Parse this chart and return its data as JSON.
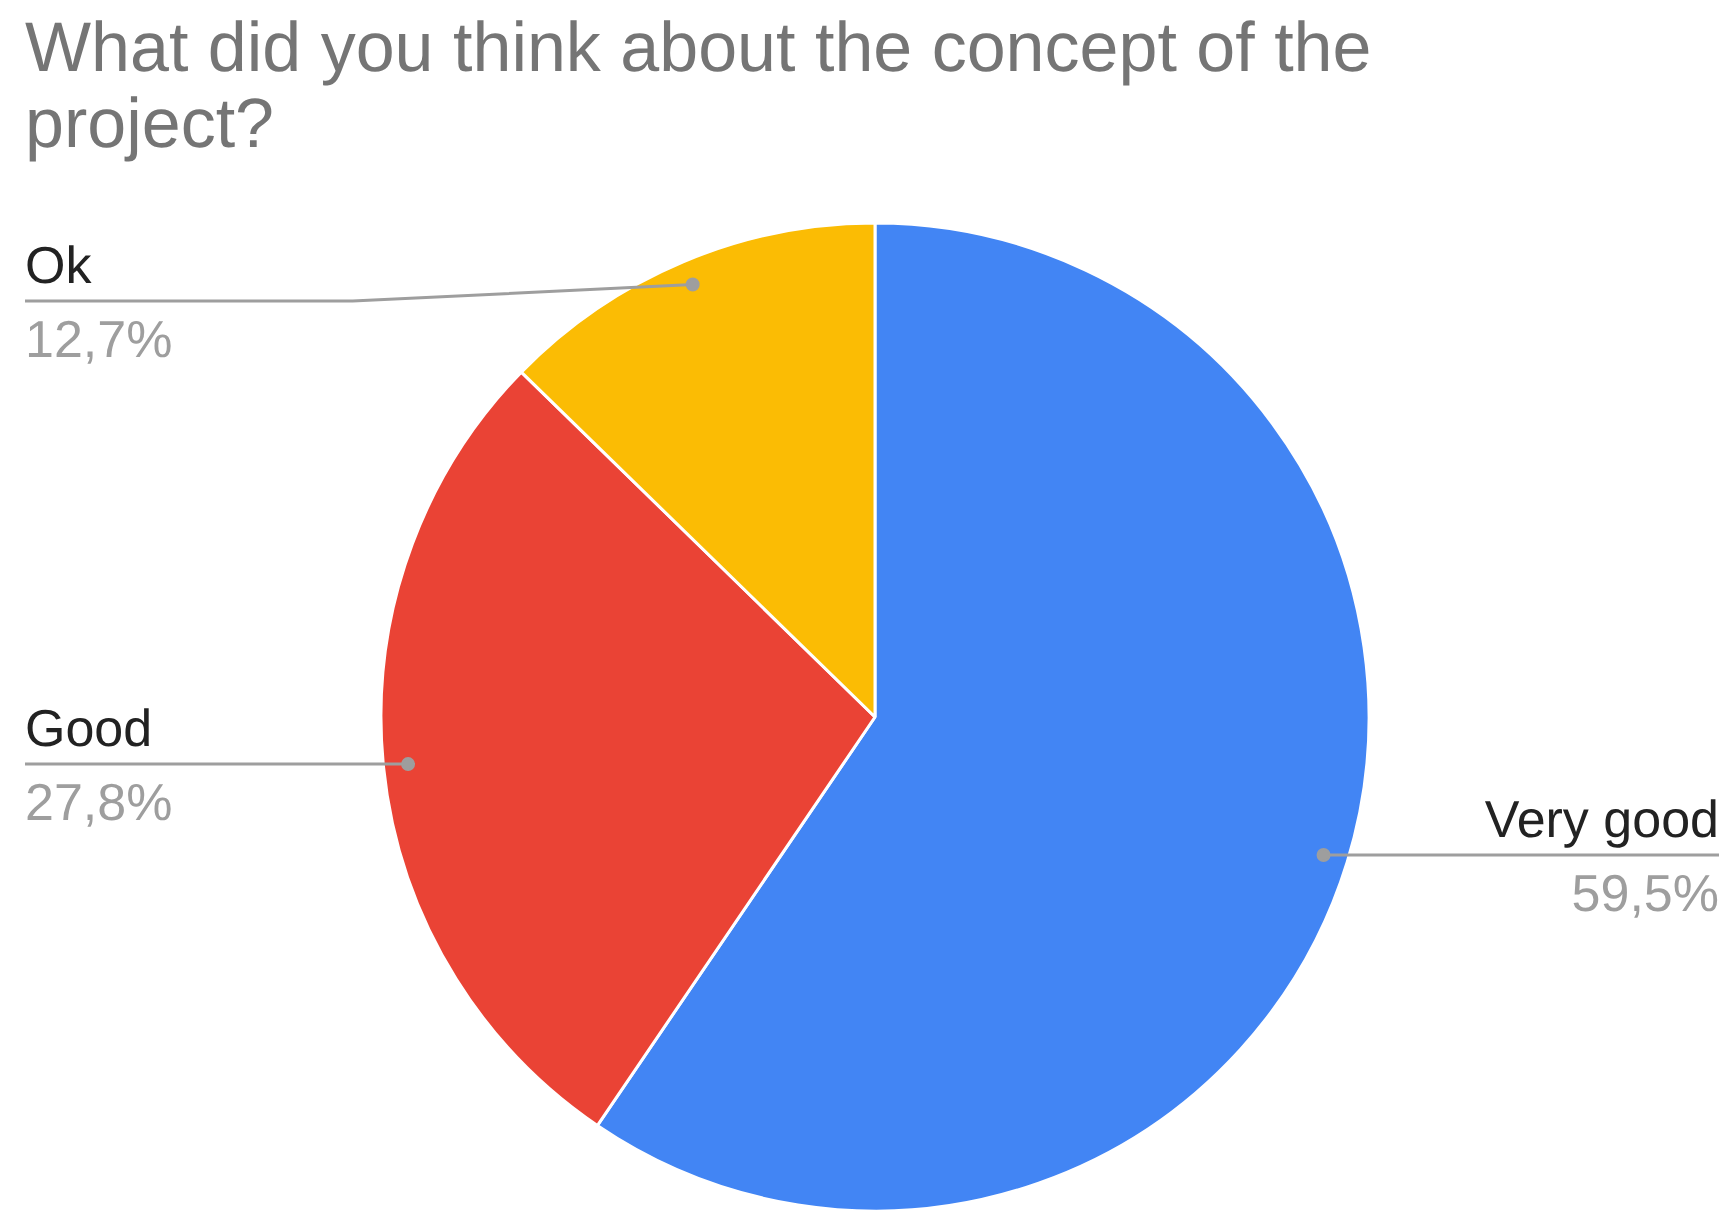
{
  "chart_data": {
    "type": "pie",
    "title": "What did you think about the concept of the project?",
    "categories": [
      "Very good",
      "Good",
      "Ok"
    ],
    "values": [
      59.5,
      27.8,
      12.7
    ],
    "colors": [
      "#4285f4",
      "#ea4335",
      "#fbbc04"
    ],
    "value_labels": [
      "59,5%",
      "27,8%",
      "12,7%"
    ]
  }
}
